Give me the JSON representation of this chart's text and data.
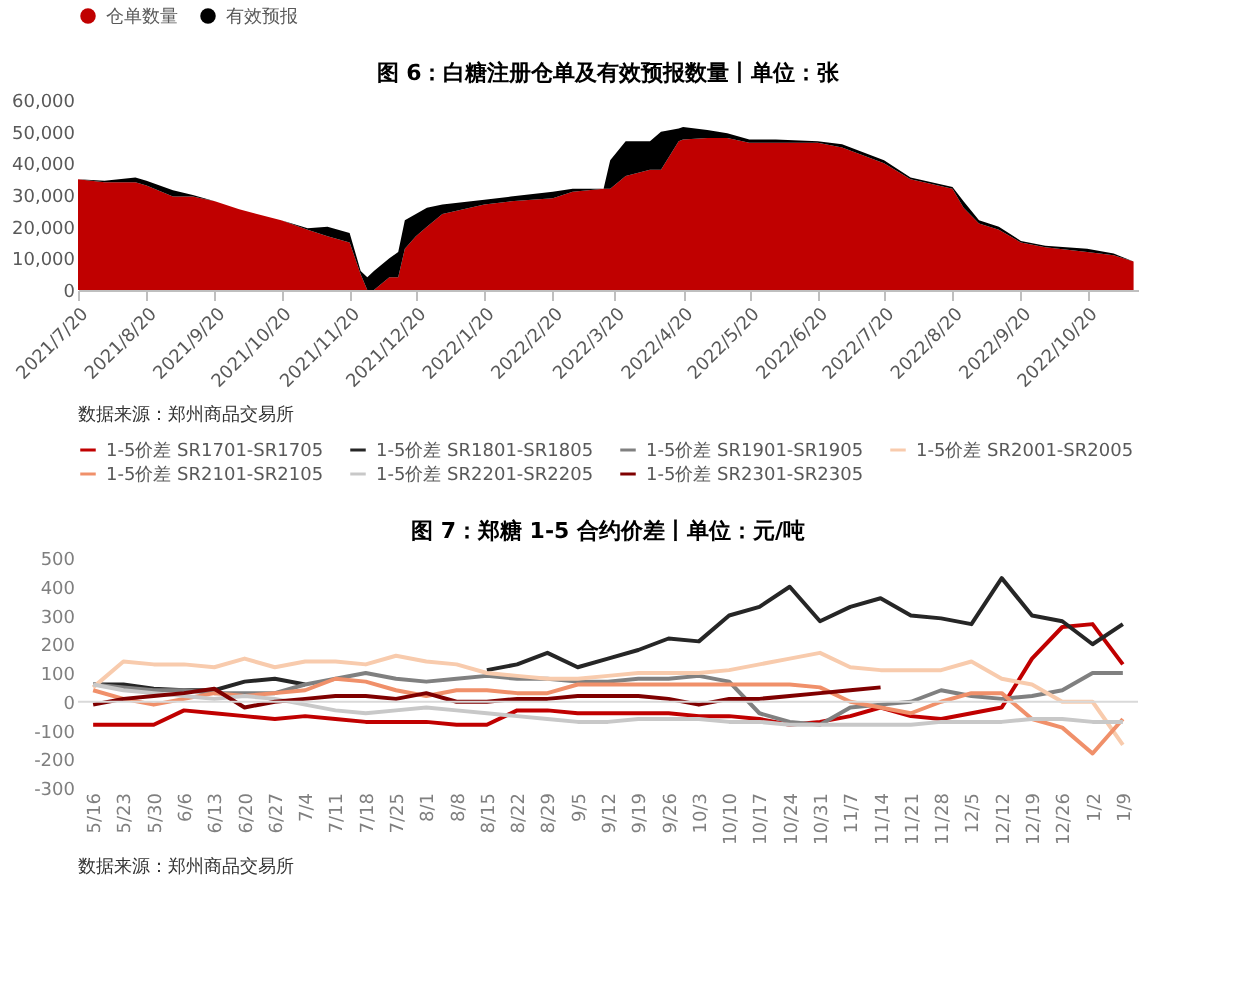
{
  "chart_data": [
    {
      "type": "area",
      "title": "图 6：白糖注册仓单及有效预报数量丨单位：张",
      "stacked": true,
      "legend": "top",
      "grid": false,
      "x": [
        "2021-07-20",
        "2021-08-01",
        "2021-08-15",
        "2021-08-20",
        "2021-09-01",
        "2021-09-10",
        "2021-09-20",
        "2021-10-01",
        "2021-10-20",
        "2021-11-01",
        "2021-11-10",
        "2021-11-20",
        "2021-11-25",
        "2021-11-28",
        "2021-12-01",
        "2021-12-08",
        "2021-12-12",
        "2021-12-15",
        "2021-12-20",
        "2021-12-25",
        "2022-01-01",
        "2022-01-20",
        "2022-02-01",
        "2022-02-20",
        "2022-03-01",
        "2022-03-15",
        "2022-03-18",
        "2022-03-25",
        "2022-04-05",
        "2022-04-10",
        "2022-04-18",
        "2022-04-20",
        "2022-05-01",
        "2022-05-10",
        "2022-05-20",
        "2022-06-01",
        "2022-06-20",
        "2022-07-01",
        "2022-07-20",
        "2022-08-01",
        "2022-08-20",
        "2022-08-25",
        "2022-09-01",
        "2022-09-10",
        "2022-09-20",
        "2022-10-01",
        "2022-10-20",
        "2022-11-01",
        "2022-11-10"
      ],
      "series": [
        {
          "name": "仓单数量",
          "color": "#c00000",
          "values": [
            35000,
            34000,
            34000,
            33000,
            29500,
            29500,
            28000,
            25500,
            22000,
            19000,
            17000,
            15000,
            5000,
            0,
            0,
            4000,
            4000,
            13000,
            17000,
            20000,
            24000,
            27000,
            28000,
            29000,
            31000,
            32000,
            32000,
            36000,
            38000,
            38000,
            47000,
            47500,
            48000,
            48000,
            46500,
            46500,
            46500,
            45000,
            40000,
            35000,
            32000,
            26000,
            21000,
            19000,
            15000,
            13500,
            12000,
            11000,
            9000
          ]
        },
        {
          "name": "有效预报",
          "color": "#000000",
          "values": [
            0,
            500,
            1500,
            1500,
            2000,
            500,
            0,
            0,
            0,
            500,
            3000,
            3000,
            1000,
            4000,
            6000,
            6000,
            8000,
            9000,
            7000,
            6000,
            3000,
            1500,
            1500,
            2000,
            1000,
            0,
            9000,
            11000,
            9000,
            12000,
            4000,
            4000,
            2500,
            1500,
            1000,
            1000,
            500,
            1000,
            1000,
            500,
            500,
            2000,
            1000,
            1000,
            500,
            500,
            1000,
            500,
            0
          ]
        }
      ],
      "xlim": [
        "2021-07-20",
        "2022-11-12"
      ],
      "xticks": [
        {
          "value": "2021-07-20",
          "label": "2021/7/20"
        },
        {
          "value": "2021-08-20",
          "label": "2021/8/20"
        },
        {
          "value": "2021-09-20",
          "label": "2021/9/20"
        },
        {
          "value": "2021-10-20",
          "label": "2021/10/20"
        },
        {
          "value": "2021-11-20",
          "label": "2021/11/20"
        },
        {
          "value": "2021-12-20",
          "label": "2021/12/20"
        },
        {
          "value": "2022-01-20",
          "label": "2022/1/20"
        },
        {
          "value": "2022-02-20",
          "label": "2022/2/20"
        },
        {
          "value": "2022-03-20",
          "label": "2022/3/20"
        },
        {
          "value": "2022-04-20",
          "label": "2022/4/20"
        },
        {
          "value": "2022-05-20",
          "label": "2022/5/20"
        },
        {
          "value": "2022-06-20",
          "label": "2022/6/20"
        },
        {
          "value": "2022-07-20",
          "label": "2022/7/20"
        },
        {
          "value": "2022-08-20",
          "label": "2022/8/20"
        },
        {
          "value": "2022-09-20",
          "label": "2022/9/20"
        },
        {
          "value": "2022-10-20",
          "label": "2022/10/20"
        }
      ],
      "ylim": [
        0,
        60000
      ],
      "yticks": [
        {
          "value": 0,
          "label": "0"
        },
        {
          "value": 10000,
          "label": "10,000"
        },
        {
          "value": 20000,
          "label": "20,000"
        },
        {
          "value": 30000,
          "label": "30,000"
        },
        {
          "value": 40000,
          "label": "40,000"
        },
        {
          "value": 50000,
          "label": "50,000"
        },
        {
          "value": 60000,
          "label": "60,000"
        }
      ],
      "annotations": [
        "数据来源：郑州商品交易所"
      ]
    },
    {
      "type": "line",
      "title": "图 7：郑糖 1-5 合约价差丨单位：元/吨",
      "legend": "top",
      "grid": false,
      "marker": "none",
      "line_style": "solid",
      "categories": [
        "5/16",
        "5/23",
        "5/30",
        "6/6",
        "6/13",
        "6/20",
        "6/27",
        "7/4",
        "7/11",
        "7/18",
        "7/25",
        "8/1",
        "8/8",
        "8/15",
        "8/22",
        "8/29",
        "9/5",
        "9/12",
        "9/19",
        "9/26",
        "10/3",
        "10/10",
        "10/17",
        "10/24",
        "10/31",
        "11/7",
        "11/14",
        "11/21",
        "11/28",
        "12/5",
        "12/12",
        "12/19",
        "12/26",
        "1/2",
        "1/9"
      ],
      "series": [
        {
          "name": "1-5价差 SR1701-SR1705",
          "color": "#c00000",
          "values": [
            -80,
            -80,
            -80,
            -30,
            -40,
            -50,
            -60,
            -50,
            -60,
            -70,
            -70,
            -70,
            -80,
            -80,
            -30,
            -30,
            -40,
            -40,
            -40,
            -40,
            -50,
            -50,
            -60,
            -80,
            -70,
            -50,
            -20,
            -50,
            -60,
            -40,
            -20,
            150,
            260,
            270,
            130
          ]
        },
        {
          "name": "1-5价差 SR1801-SR1805",
          "color": "#262626",
          "values": [
            60,
            60,
            45,
            40,
            40,
            70,
            80,
            60,
            null,
            null,
            null,
            null,
            null,
            110,
            130,
            170,
            120,
            150,
            180,
            220,
            210,
            300,
            330,
            400,
            280,
            330,
            360,
            300,
            290,
            270,
            430,
            300,
            280,
            200,
            270
          ]
        },
        {
          "name": "1-5价差 SR1901-SR1905",
          "color": "#808080",
          "values": [
            60,
            50,
            40,
            40,
            30,
            30,
            30,
            60,
            80,
            100,
            80,
            70,
            80,
            90,
            80,
            80,
            70,
            70,
            80,
            80,
            90,
            70,
            -40,
            -70,
            -80,
            -20,
            -10,
            0,
            40,
            20,
            10,
            20,
            40,
            100,
            100
          ]
        },
        {
          "name": "1-5价差 SR2001-SR2005",
          "color": "#f8cbad",
          "values": [
            50,
            140,
            130,
            130,
            120,
            150,
            120,
            140,
            140,
            130,
            160,
            140,
            130,
            100,
            90,
            80,
            80,
            90,
            100,
            100,
            100,
            110,
            130,
            150,
            170,
            120,
            110,
            110,
            110,
            140,
            80,
            60,
            0,
            0,
            -150
          ]
        },
        {
          "name": "1-5价差 SR2101-SR2105",
          "color": "#f0906a",
          "values": [
            40,
            10,
            -10,
            10,
            30,
            20,
            30,
            40,
            80,
            70,
            40,
            20,
            40,
            40,
            30,
            30,
            60,
            60,
            60,
            60,
            60,
            60,
            60,
            60,
            50,
            0,
            -20,
            -40,
            0,
            30,
            30,
            -60,
            -90,
            -180,
            -60
          ]
        },
        {
          "name": "1-5价差 SR2201-SR2205",
          "color": "#c8c8c8",
          "values": [
            60,
            40,
            30,
            20,
            10,
            20,
            10,
            -10,
            -30,
            -40,
            -30,
            -20,
            -30,
            -40,
            -50,
            -60,
            -70,
            -70,
            -60,
            -60,
            -60,
            -70,
            -70,
            -80,
            -80,
            -80,
            -80,
            -80,
            -70,
            -70,
            -70,
            -60,
            -60,
            -70,
            -70
          ]
        },
        {
          "name": "1-5价差 SR2301-SR2305",
          "color": "#7f0000",
          "values": [
            -10,
            10,
            20,
            30,
            45,
            -20,
            0,
            10,
            20,
            20,
            10,
            30,
            0,
            0,
            10,
            10,
            20,
            20,
            20,
            10,
            -10,
            10,
            10,
            20,
            30,
            40,
            50,
            null,
            null,
            null,
            null,
            null,
            null,
            null,
            null
          ]
        }
      ],
      "ylim": [
        -300,
        500
      ],
      "yticks": [
        -300,
        -200,
        -100,
        0,
        100,
        200,
        300,
        400,
        500
      ],
      "ref_lines": [
        {
          "axis": "y",
          "value": 0,
          "color": "#d9d9d9"
        }
      ],
      "annotations": [
        "数据来源：郑州商品交易所"
      ]
    }
  ]
}
